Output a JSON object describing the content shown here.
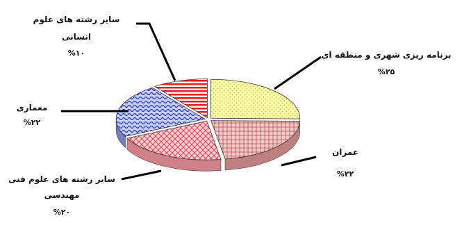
{
  "chart_data": {
    "type": "pie",
    "style": "3d-exploded",
    "title": "",
    "slices": [
      {
        "label": "برنامه ریزی شهری و منطقه ای",
        "value": 25,
        "value_label": "%۲۵",
        "color": "#ffff99",
        "pattern": "dots"
      },
      {
        "label": "عمران",
        "value": 22,
        "value_label": "%۲۲",
        "color": "#e8b0b0",
        "pattern": "grid"
      },
      {
        "label": "سایر رشته های علوم فنی مهندسی",
        "value": 20,
        "value_label": "%۲۰",
        "color": "#f0a0a8",
        "pattern": "diamond"
      },
      {
        "label": "معماری",
        "value": 22,
        "value_label": "%۲۲",
        "color": "#5566dd",
        "pattern": "waves"
      },
      {
        "label": "سایر رشته های علوم انسانی",
        "value": 10,
        "value_label": "%۱۰",
        "color": "#ee2222",
        "pattern": "stripes"
      }
    ]
  }
}
